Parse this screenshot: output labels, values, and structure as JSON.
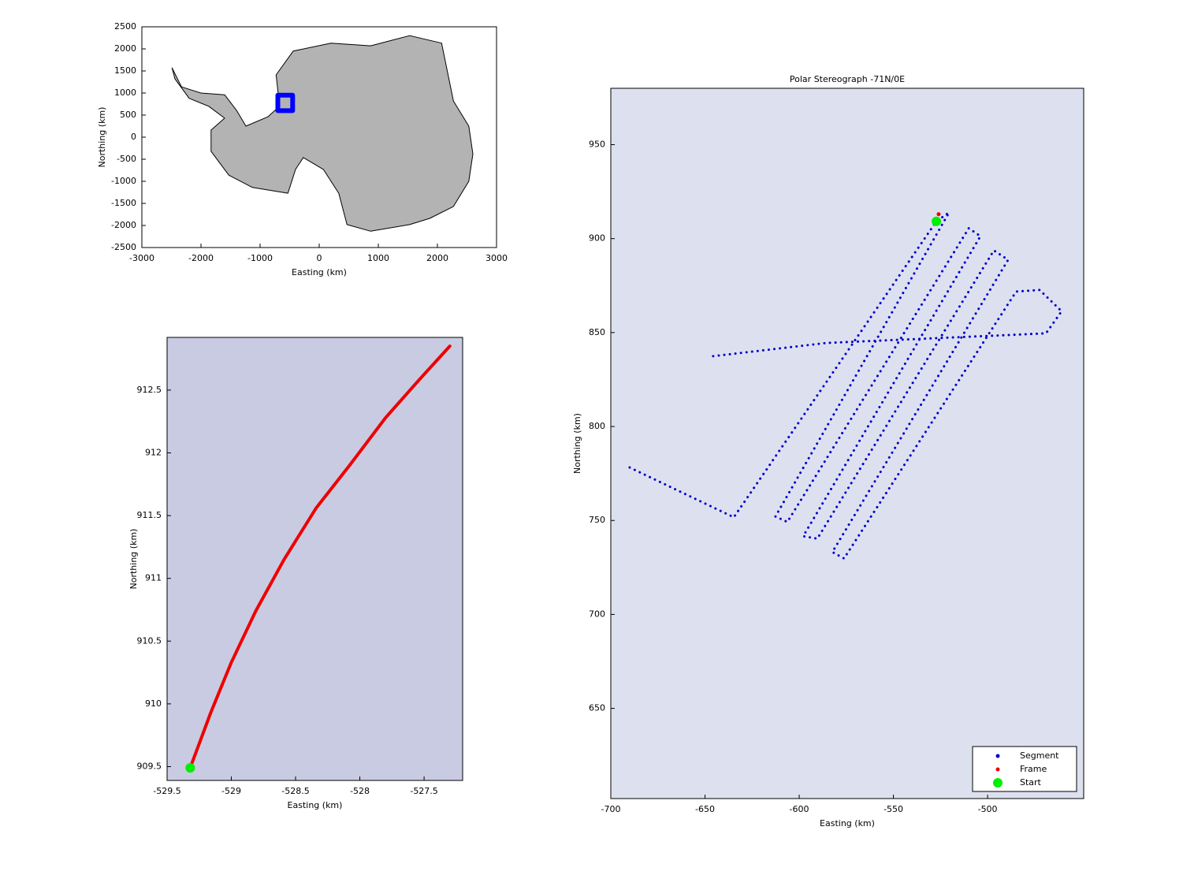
{
  "chart_data": [
    {
      "type": "map",
      "xlabel": "Easting (km)",
      "ylabel": "Northing (km)",
      "xlim": [
        -3000,
        3000
      ],
      "ylim": [
        -2500,
        2500
      ],
      "xticks": [
        -3000,
        -2000,
        -1000,
        0,
        1000,
        2000,
        3000
      ],
      "yticks": [
        -2500,
        -2000,
        -1500,
        -1000,
        -500,
        0,
        500,
        1000,
        1500,
        2000,
        2500
      ],
      "series": [
        {
          "color": "#000000",
          "fill": "#b3b3b3",
          "line": "solid",
          "x": [
            -2490,
            -2330,
            -2000,
            -1600,
            -1400,
            -1240,
            -870,
            -670,
            -730,
            -440,
            200,
            870,
            1530,
            2070,
            2270,
            2530,
            2600,
            2530,
            2270,
            1870,
            1530,
            870,
            470,
            330,
            70,
            -270,
            -400,
            -530,
            -1130,
            -1530,
            -1830,
            -1830,
            -1600,
            -1870,
            -2200,
            -2440,
            -2490
          ],
          "y": [
            1570,
            1140,
            1000,
            960,
            610,
            250,
            460,
            700,
            1410,
            1950,
            2130,
            2070,
            2300,
            2130,
            820,
            250,
            -380,
            -1000,
            -1570,
            -1840,
            -1980,
            -2130,
            -1980,
            -1270,
            -730,
            -460,
            -730,
            -1270,
            -1140,
            -860,
            -320,
            160,
            430,
            700,
            880,
            1320,
            1570
          ]
        },
        {
          "color": "#0000ff",
          "line": "solid",
          "width": 6,
          "x": [
            -700,
            -450,
            -450,
            -700,
            -700
          ],
          "y": [
            600,
            600,
            950,
            950,
            600
          ]
        }
      ]
    },
    {
      "type": "map",
      "xlabel": "Easting (km)",
      "ylabel": "Northing (km)",
      "xlim": [
        -529.5,
        -527.2
      ],
      "ylim": [
        909.39,
        912.92
      ],
      "xticks": [
        -529.5,
        -529,
        -528.5,
        -528,
        -527.5
      ],
      "yticks": [
        909.5,
        910,
        910.5,
        911,
        911.5,
        912,
        912.5
      ],
      "background": "#c9cbe2",
      "series": [
        {
          "color": "#ee0000",
          "line": "solid",
          "width": 4,
          "x": [
            -529.32,
            -529.16,
            -529.0,
            -528.81,
            -528.59,
            -528.34,
            -528.08,
            -527.8,
            -527.54,
            -527.3
          ],
          "y": [
            909.49,
            909.93,
            910.33,
            910.74,
            911.15,
            911.56,
            911.9,
            912.28,
            912.58,
            912.85
          ]
        },
        {
          "color": "#00ee00",
          "marker": "circle",
          "x": [
            -529.32
          ],
          "y": [
            909.49
          ]
        }
      ]
    },
    {
      "type": "map",
      "title": "Polar Stereograph -71N/0E",
      "xlabel": "Easting (km)",
      "ylabel": "Northing (km)",
      "xlim": [
        -700,
        -449
      ],
      "ylim": [
        602,
        980
      ],
      "xticks": [
        -700,
        -650,
        -600,
        -550,
        -500
      ],
      "yticks": [
        650,
        700,
        750,
        800,
        850,
        900,
        950
      ],
      "background": "#dde1ef",
      "legend": "lower right",
      "series": [
        {
          "name": "Segment",
          "color": "#0000cc",
          "line": "dotted",
          "width": 3,
          "x": [
            -690.0,
            -634.7,
            -527.2,
            -520.5,
            -612.6,
            -606.3,
            -510.0,
            -503.8,
            -597.9,
            -590.4,
            -496.7,
            -489.1,
            -582.4,
            -576.2,
            -484.9,
            -472.4,
            -460.7,
            -469.0,
            -489.1,
            -585.4,
            -646.0
          ],
          "y": [
            778.2,
            751.7,
            909.2,
            913.9,
            752.1,
            749.2,
            905.5,
            901.3,
            741.6,
            740.3,
            893.7,
            888.7,
            733.2,
            729.8,
            871.8,
            872.7,
            861.3,
            849.6,
            848.7,
            844.5,
            837.4
          ]
        },
        {
          "name": "Frame",
          "color": "#ee0000",
          "marker": "dot",
          "x": [
            -526
          ],
          "y": [
            913
          ]
        },
        {
          "name": "Start",
          "color": "#00ee00",
          "marker": "circle",
          "x": [
            -527.2
          ],
          "y": [
            909.2
          ]
        }
      ]
    }
  ]
}
